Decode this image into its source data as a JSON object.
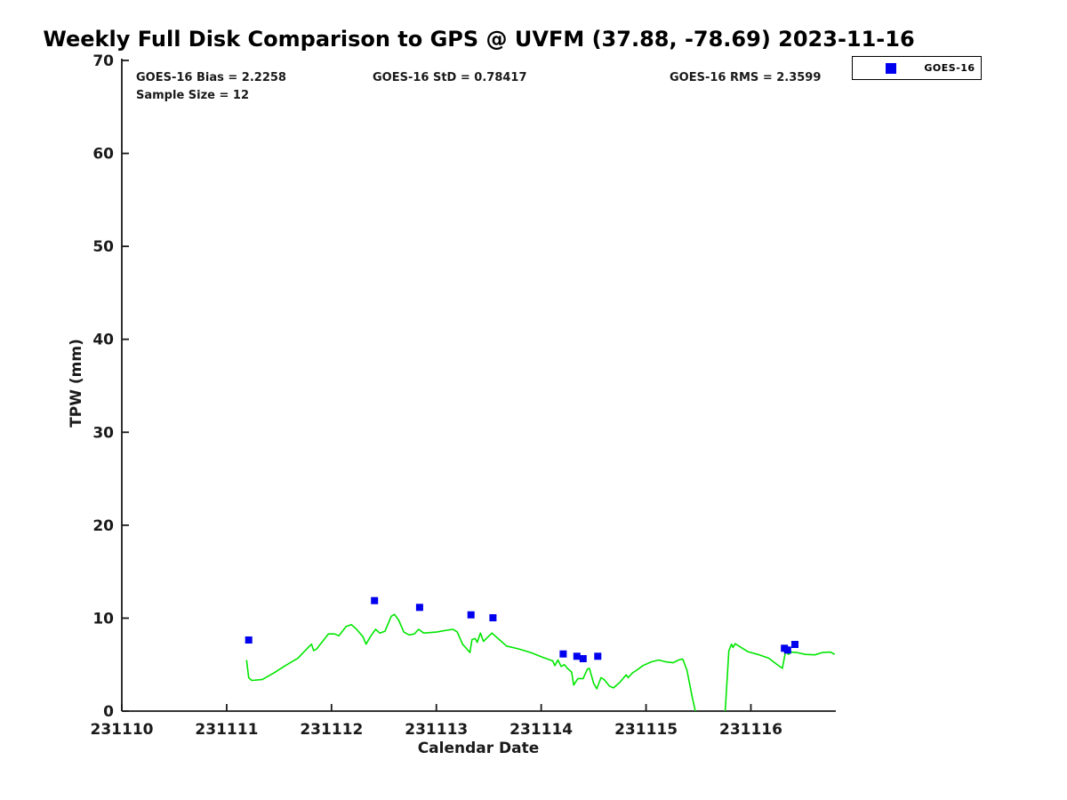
{
  "figure": {
    "background": "#ffffff",
    "axis_color": "#1a1a1a",
    "title_color": "#000000"
  },
  "stats": {
    "bias": "GOES-16 Bias = 2.2258",
    "std": "GOES-16 StD = 0.78417",
    "rms": "GOES-16 RMS = 2.3599",
    "sample_size": "Sample Size = 12"
  },
  "legend": {
    "entries": [
      {
        "label": "GOES-16",
        "marker": "square",
        "color": "#0000ee"
      }
    ]
  },
  "chart_data": {
    "type": "line+scatter",
    "title": "Weekly Full Disk Comparison to GPS @ UVFM (37.88, -78.69) 2023-11-16",
    "xlabel": "Calendar Date",
    "ylabel": "TPW (mm)",
    "xlim": [
      231110,
      231116.81
    ],
    "ylim": [
      0,
      70
    ],
    "xticks": [
      231110,
      231111,
      231112,
      231113,
      231114,
      231115,
      231116
    ],
    "yticks": [
      0,
      10,
      20,
      30,
      40,
      50,
      60,
      70
    ],
    "grid": false,
    "legend_position": "top-right",
    "series": [
      {
        "name": "GPS",
        "type": "line",
        "color": "#00e600",
        "points": [
          [
            231111.19,
            5.5
          ],
          [
            231111.21,
            3.6
          ],
          [
            231111.24,
            3.3
          ],
          [
            231111.34,
            3.4
          ],
          [
            231111.45,
            4.1
          ],
          [
            231111.56,
            4.9
          ],
          [
            231111.68,
            5.7
          ],
          [
            231111.79,
            7.0
          ],
          [
            231111.81,
            7.2
          ],
          [
            231111.83,
            6.5
          ],
          [
            231111.86,
            6.7
          ],
          [
            231111.97,
            8.3
          ],
          [
            231112.03,
            8.3
          ],
          [
            231112.07,
            8.1
          ],
          [
            231112.14,
            9.1
          ],
          [
            231112.19,
            9.3
          ],
          [
            231112.24,
            8.8
          ],
          [
            231112.3,
            8.0
          ],
          [
            231112.33,
            7.2
          ],
          [
            231112.37,
            8.0
          ],
          [
            231112.42,
            8.8
          ],
          [
            231112.46,
            8.4
          ],
          [
            231112.51,
            8.6
          ],
          [
            231112.57,
            10.2
          ],
          [
            231112.6,
            10.4
          ],
          [
            231112.64,
            9.8
          ],
          [
            231112.69,
            8.5
          ],
          [
            231112.74,
            8.2
          ],
          [
            231112.79,
            8.3
          ],
          [
            231112.83,
            8.8
          ],
          [
            231112.88,
            8.4
          ],
          [
            231113.0,
            8.5
          ],
          [
            231113.1,
            8.7
          ],
          [
            231113.16,
            8.8
          ],
          [
            231113.2,
            8.5
          ],
          [
            231113.25,
            7.2
          ],
          [
            231113.29,
            6.7
          ],
          [
            231113.32,
            6.3
          ],
          [
            231113.34,
            7.7
          ],
          [
            231113.37,
            7.8
          ],
          [
            231113.39,
            7.4
          ],
          [
            231113.42,
            8.4
          ],
          [
            231113.45,
            7.5
          ],
          [
            231113.53,
            8.4
          ],
          [
            231113.6,
            7.7
          ],
          [
            231113.67,
            7.0
          ],
          [
            231113.78,
            6.7
          ],
          [
            231113.9,
            6.3
          ],
          [
            231114.01,
            5.8
          ],
          [
            231114.11,
            5.4
          ],
          [
            231114.13,
            4.9
          ],
          [
            231114.16,
            5.5
          ],
          [
            231114.19,
            4.8
          ],
          [
            231114.22,
            5.0
          ],
          [
            231114.25,
            4.6
          ],
          [
            231114.29,
            4.2
          ],
          [
            231114.31,
            2.8
          ],
          [
            231114.35,
            3.5
          ],
          [
            231114.4,
            3.5
          ],
          [
            231114.44,
            4.5
          ],
          [
            231114.46,
            4.6
          ],
          [
            231114.5,
            3.0
          ],
          [
            231114.53,
            2.4
          ],
          [
            231114.57,
            3.6
          ],
          [
            231114.6,
            3.4
          ],
          [
            231114.65,
            2.7
          ],
          [
            231114.69,
            2.5
          ],
          [
            231114.75,
            3.1
          ],
          [
            231114.81,
            3.9
          ],
          [
            231114.83,
            3.6
          ],
          [
            231114.87,
            4.1
          ],
          [
            231114.91,
            4.4
          ],
          [
            231114.97,
            4.9
          ],
          [
            231115.05,
            5.3
          ],
          [
            231115.12,
            5.5
          ],
          [
            231115.19,
            5.3
          ],
          [
            231115.26,
            5.2
          ],
          [
            231115.31,
            5.5
          ],
          [
            231115.35,
            5.6
          ],
          [
            231115.39,
            4.4
          ],
          [
            231115.44,
            1.5
          ],
          [
            231115.47,
            0.0
          ],
          [
            231115.53,
            -2.5
          ],
          [
            231115.69,
            -2.5
          ],
          [
            231115.755,
            0.0
          ],
          [
            231115.79,
            6.5
          ],
          [
            231115.815,
            7.2
          ],
          [
            231115.83,
            6.85
          ],
          [
            231115.85,
            7.25
          ],
          [
            231115.97,
            6.4
          ],
          [
            231116.08,
            6.05
          ],
          [
            231116.17,
            5.7
          ],
          [
            231116.24,
            5.1
          ],
          [
            231116.3,
            4.6
          ],
          [
            231116.33,
            6.4
          ],
          [
            231116.36,
            6.1
          ],
          [
            231116.38,
            6.35
          ],
          [
            231116.44,
            6.3
          ],
          [
            231116.52,
            6.1
          ],
          [
            231116.61,
            6.05
          ],
          [
            231116.68,
            6.3
          ],
          [
            231116.76,
            6.35
          ],
          [
            231116.8,
            6.1
          ]
        ]
      },
      {
        "name": "GOES-16",
        "type": "scatter",
        "marker": "square",
        "marker_size": 8,
        "color": "#0000ee",
        "points": [
          [
            231111.21,
            7.65
          ],
          [
            231112.41,
            11.89
          ],
          [
            231112.84,
            11.16
          ],
          [
            231113.33,
            10.36
          ],
          [
            231113.54,
            10.04
          ],
          [
            231114.21,
            6.15
          ],
          [
            231114.34,
            5.9
          ],
          [
            231114.4,
            5.64
          ],
          [
            231114.54,
            5.9
          ],
          [
            231116.32,
            6.76
          ],
          [
            231116.35,
            6.57
          ],
          [
            231116.42,
            7.17
          ]
        ]
      }
    ]
  }
}
